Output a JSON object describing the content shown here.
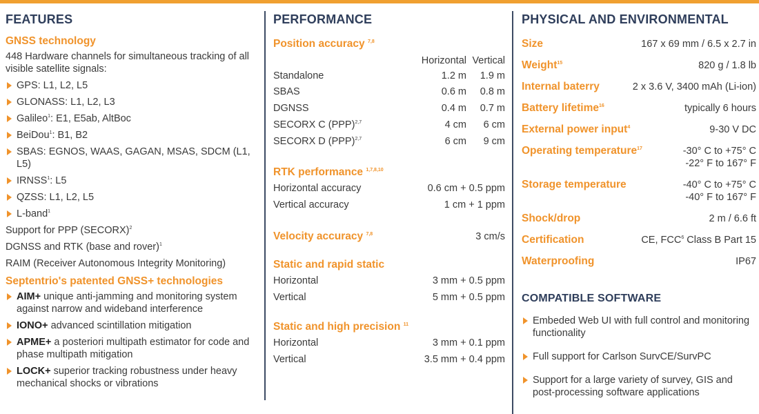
{
  "colors": {
    "accent": "#f0932b",
    "heading": "#2f3e5b",
    "separator": "#3b4a63"
  },
  "features": {
    "title": "FEATURES",
    "gnss_title": "GNSS technology",
    "gnss_intro": "448 Hardware channels for simultaneous tracking of all visible satellite signals:",
    "signals": [
      {
        "text": "GPS: L1, L2, L5",
        "sup": ""
      },
      {
        "text": "GLONASS: L1, L2, L3",
        "sup": ""
      },
      {
        "pre": "Galileo",
        "sup": "1",
        "post": ": E1, E5ab, AltBoc"
      },
      {
        "pre": "BeiDou",
        "sup": "1",
        "post": ": B1, B2"
      },
      {
        "text": "SBAS: EGNOS, WAAS, GAGAN, MSAS, SDCM (L1, L5)",
        "sup": ""
      },
      {
        "pre": "IRNSS",
        "sup": "1",
        "post": ": L5"
      },
      {
        "text": "QZSS: L1, L2, L5",
        "sup": ""
      },
      {
        "pre": "L-band",
        "sup": "1",
        "post": ""
      }
    ],
    "ppp": {
      "text": "Support for PPP (SECORX)",
      "sup": "2"
    },
    "dgnss": {
      "text": "DGNSS and RTK (base and rover)",
      "sup": "1"
    },
    "raim": "RAIM (Receiver Autonomous Integrity Monitoring)",
    "tech_title": "Septentrio's patented GNSS+ technologies",
    "techs": [
      {
        "name": "AIM+",
        "desc": "unique anti-jamming and monitoring system against narrow and wideband interference"
      },
      {
        "name": "IONO+",
        "desc": "advanced scintillation mitigation"
      },
      {
        "name": "APME+",
        "desc": "a posteriori multipath estimator for code and phase multipath mitigation"
      },
      {
        "name": "LOCK+",
        "desc": "superior tracking robustness under heavy mechanical shocks or vibrations"
      }
    ]
  },
  "performance": {
    "title": "PERFORMANCE",
    "position": {
      "title": "Position accuracy",
      "sup": "7,8",
      "col_h": "Horizontal",
      "col_v": "Vertical",
      "rows": [
        {
          "label": "Standalone",
          "sup": "",
          "h": "1.2 m",
          "v": "1.9 m"
        },
        {
          "label": "SBAS",
          "sup": "",
          "h": "0.6 m",
          "v": "0.8 m"
        },
        {
          "label": "DGNSS",
          "sup": "",
          "h": "0.4 m",
          "v": "0.7 m"
        },
        {
          "label": "SECORX C (PPP)",
          "sup": "2,7",
          "h": "4 cm",
          "v": "6 cm"
        },
        {
          "label": "SECORX D (PPP)",
          "sup": "2,7",
          "h": "6 cm",
          "v": "9 cm"
        }
      ]
    },
    "rtk": {
      "title": "RTK performance",
      "sup": "1,7,8,10",
      "rows": [
        {
          "label": "Horizontal accuracy",
          "value": "0.6 cm + 0.5 ppm"
        },
        {
          "label": "Vertical accuracy",
          "value": "1 cm + 1 ppm"
        }
      ]
    },
    "velocity": {
      "title": "Velocity accuracy",
      "sup": "7,8",
      "value": "3 cm/s"
    },
    "static_rapid": {
      "title": "Static and rapid static",
      "rows": [
        {
          "label": "Horizontal",
          "value": "3 mm + 0.5 ppm"
        },
        {
          "label": "Vertical",
          "value": "5 mm + 0.5 ppm"
        }
      ]
    },
    "static_high": {
      "title": "Static and high precision",
      "sup": "11",
      "rows": [
        {
          "label": "Horizontal",
          "value": "3 mm + 0.1 ppm"
        },
        {
          "label": "Vertical",
          "value": "3.5 mm + 0.4 ppm"
        }
      ]
    }
  },
  "physical": {
    "title": "PHYSICAL AND ENVIRONMENTAL",
    "rows": [
      {
        "label": "Size",
        "sup": "",
        "value": "167 x 69 mm / 6.5 x 2.7 in"
      },
      {
        "label": "Weight",
        "sup": "15",
        "value": "820 g / 1.8 lb"
      },
      {
        "label": "Internal baterry",
        "sup": "",
        "value": "2 x 3.6 V, 3400 mAh (Li-ion)"
      },
      {
        "label": "Battery lifetime",
        "sup": "16",
        "value": "typically 6 hours"
      },
      {
        "label": "External power input",
        "sup": "4",
        "value": "9-30 V DC"
      },
      {
        "label": "Operating temperature",
        "sup": "17",
        "value": "-30° C to +75° C",
        "value2": "-22° F to 167° F"
      },
      {
        "label": "Storage temperature",
        "sup": "",
        "value": "-40° C to +75° C",
        "value2": "-40° F to 167° F"
      },
      {
        "label": "Shock/drop",
        "sup": "",
        "value": "2 m / 6.6 ft"
      },
      {
        "label": "Certification",
        "sup": "",
        "value_pre": "CE, FCC",
        "value_sup": "6",
        "value_post": " Class B Part 15"
      },
      {
        "label": "Waterproofing",
        "sup": "",
        "value": "IP67"
      }
    ]
  },
  "software": {
    "title": "COMPATIBLE SOFTWARE",
    "items": [
      "Embeded Web UI with full control and monitoring functionality",
      "Full support for Carlson SurvCE/SurvPC",
      "Support for a large variety of survey, GIS and post-processing software applications"
    ]
  }
}
